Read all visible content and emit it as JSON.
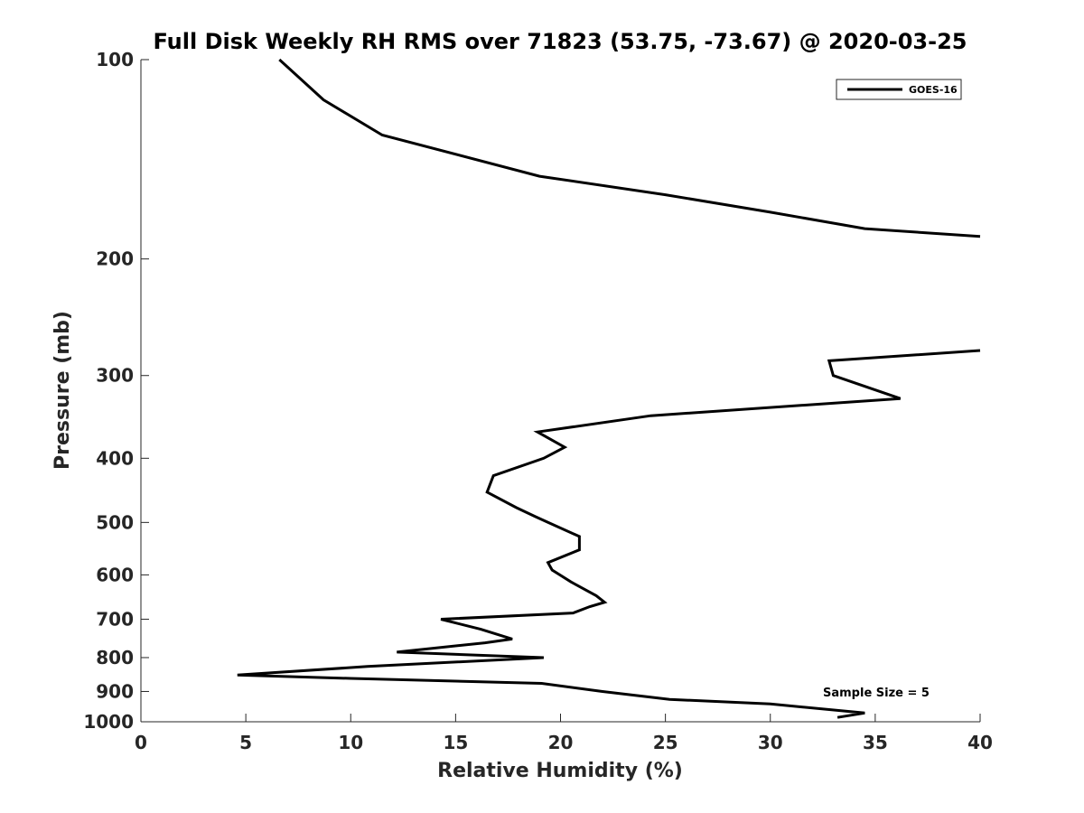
{
  "chart_data": {
    "type": "line",
    "title": "Full Disk Weekly RH RMS over 71823 (53.75, -73.67) @ 2020-03-25",
    "xlabel": "Relative Humidity (%)",
    "ylabel": "Pressure (mb)",
    "xlim": [
      0,
      40
    ],
    "ylim": [
      100,
      1000
    ],
    "y_scale": "log",
    "y_reversed": true,
    "grid": false,
    "legend_position": "top-right",
    "x_ticks": [
      0,
      5,
      10,
      15,
      20,
      25,
      30,
      35,
      40
    ],
    "x_tick_labels": [
      "0",
      "5",
      "10",
      "15",
      "20",
      "25",
      "30",
      "35",
      "40"
    ],
    "y_ticks": [
      100,
      200,
      300,
      400,
      500,
      600,
      700,
      800,
      900,
      1000
    ],
    "y_tick_labels": [
      "100",
      "200",
      "300",
      "400",
      "500",
      "600",
      "700",
      "800",
      "900",
      "1000"
    ],
    "series": [
      {
        "name": "GOES-16",
        "color": "#000000",
        "segments": [
          [
            {
              "x": 6.6,
              "p": 100
            },
            {
              "x": 8.7,
              "p": 115
            },
            {
              "x": 11.5,
              "p": 130
            },
            {
              "x": 19.0,
              "p": 150
            },
            {
              "x": 25.0,
              "p": 160
            },
            {
              "x": 30.0,
              "p": 170
            },
            {
              "x": 34.5,
              "p": 180
            },
            {
              "x": 40.0,
              "p": 185
            }
          ],
          [
            {
              "x": 40.0,
              "p": 275
            },
            {
              "x": 32.8,
              "p": 285
            },
            {
              "x": 33.0,
              "p": 300
            },
            {
              "x": 36.2,
              "p": 325
            },
            {
              "x": 24.3,
              "p": 345
            },
            {
              "x": 18.9,
              "p": 365
            },
            {
              "x": 20.2,
              "p": 385
            },
            {
              "x": 19.2,
              "p": 400
            },
            {
              "x": 16.8,
              "p": 425
            },
            {
              "x": 16.5,
              "p": 450
            },
            {
              "x": 17.9,
              "p": 475
            },
            {
              "x": 18.8,
              "p": 490
            },
            {
              "x": 19.4,
              "p": 500
            },
            {
              "x": 20.9,
              "p": 525
            },
            {
              "x": 20.9,
              "p": 550
            },
            {
              "x": 19.4,
              "p": 575
            },
            {
              "x": 19.6,
              "p": 590
            },
            {
              "x": 20.5,
              "p": 615
            },
            {
              "x": 21.7,
              "p": 645
            },
            {
              "x": 22.1,
              "p": 660
            },
            {
              "x": 21.4,
              "p": 670
            },
            {
              "x": 20.6,
              "p": 685
            },
            {
              "x": 14.3,
              "p": 700
            },
            {
              "x": 16.2,
              "p": 725
            },
            {
              "x": 17.7,
              "p": 750
            },
            {
              "x": 16.4,
              "p": 760
            },
            {
              "x": 12.2,
              "p": 785
            },
            {
              "x": 19.2,
              "p": 800
            },
            {
              "x": 10.8,
              "p": 825
            },
            {
              "x": 4.6,
              "p": 850
            },
            {
              "x": 10.0,
              "p": 860
            },
            {
              "x": 19.1,
              "p": 875
            },
            {
              "x": 22.0,
              "p": 900
            },
            {
              "x": 25.2,
              "p": 925
            },
            {
              "x": 30.0,
              "p": 940
            },
            {
              "x": 34.5,
              "p": 970
            },
            {
              "x": 33.2,
              "p": 985
            }
          ]
        ]
      }
    ],
    "annotations": [
      {
        "text": "Sample Size = 5"
      }
    ]
  }
}
